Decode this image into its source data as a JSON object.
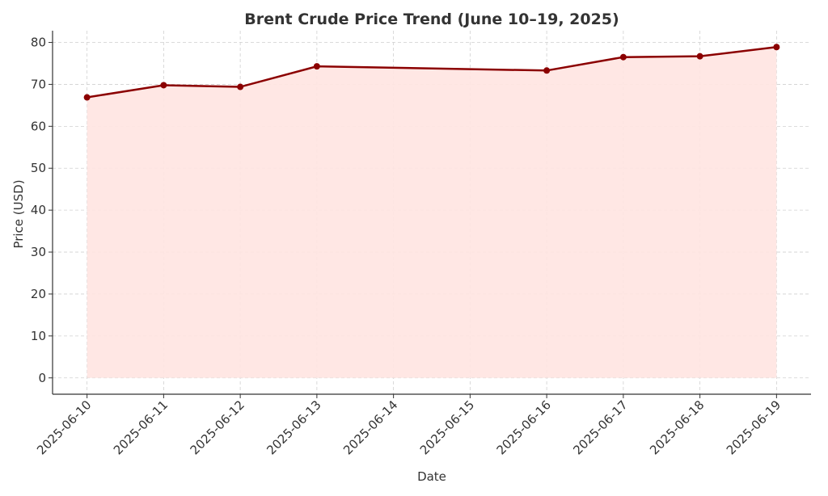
{
  "chart_data": {
    "type": "area-line",
    "title": "Brent Crude Price Trend (June 10–19, 2025)",
    "x_label": "Date",
    "y_label": "Price (USD)",
    "x": [
      "2025-06-10",
      "2025-06-11",
      "2025-06-12",
      "2025-06-13",
      "2025-06-16",
      "2025-06-17",
      "2025-06-18",
      "2025-06-19"
    ],
    "values": [
      66.9,
      69.8,
      69.4,
      74.3,
      73.3,
      76.5,
      76.7,
      78.9
    ],
    "color": "#8b0000",
    "fill_color": "#ffe4e1",
    "xlim": [
      "2025-06-09T13:12",
      "2025-06-19T10:48"
    ],
    "xticks": [
      "2025-06-10",
      "2025-06-11",
      "2025-06-12",
      "2025-06-13",
      "2025-06-14",
      "2025-06-15",
      "2025-06-16",
      "2025-06-17",
      "2025-06-18",
      "2025-06-19"
    ],
    "ylim": [
      -3.9,
      82.8
    ],
    "yticks": [
      0,
      10,
      20,
      30,
      40,
      50,
      60,
      70,
      80
    ],
    "grid": true
  }
}
